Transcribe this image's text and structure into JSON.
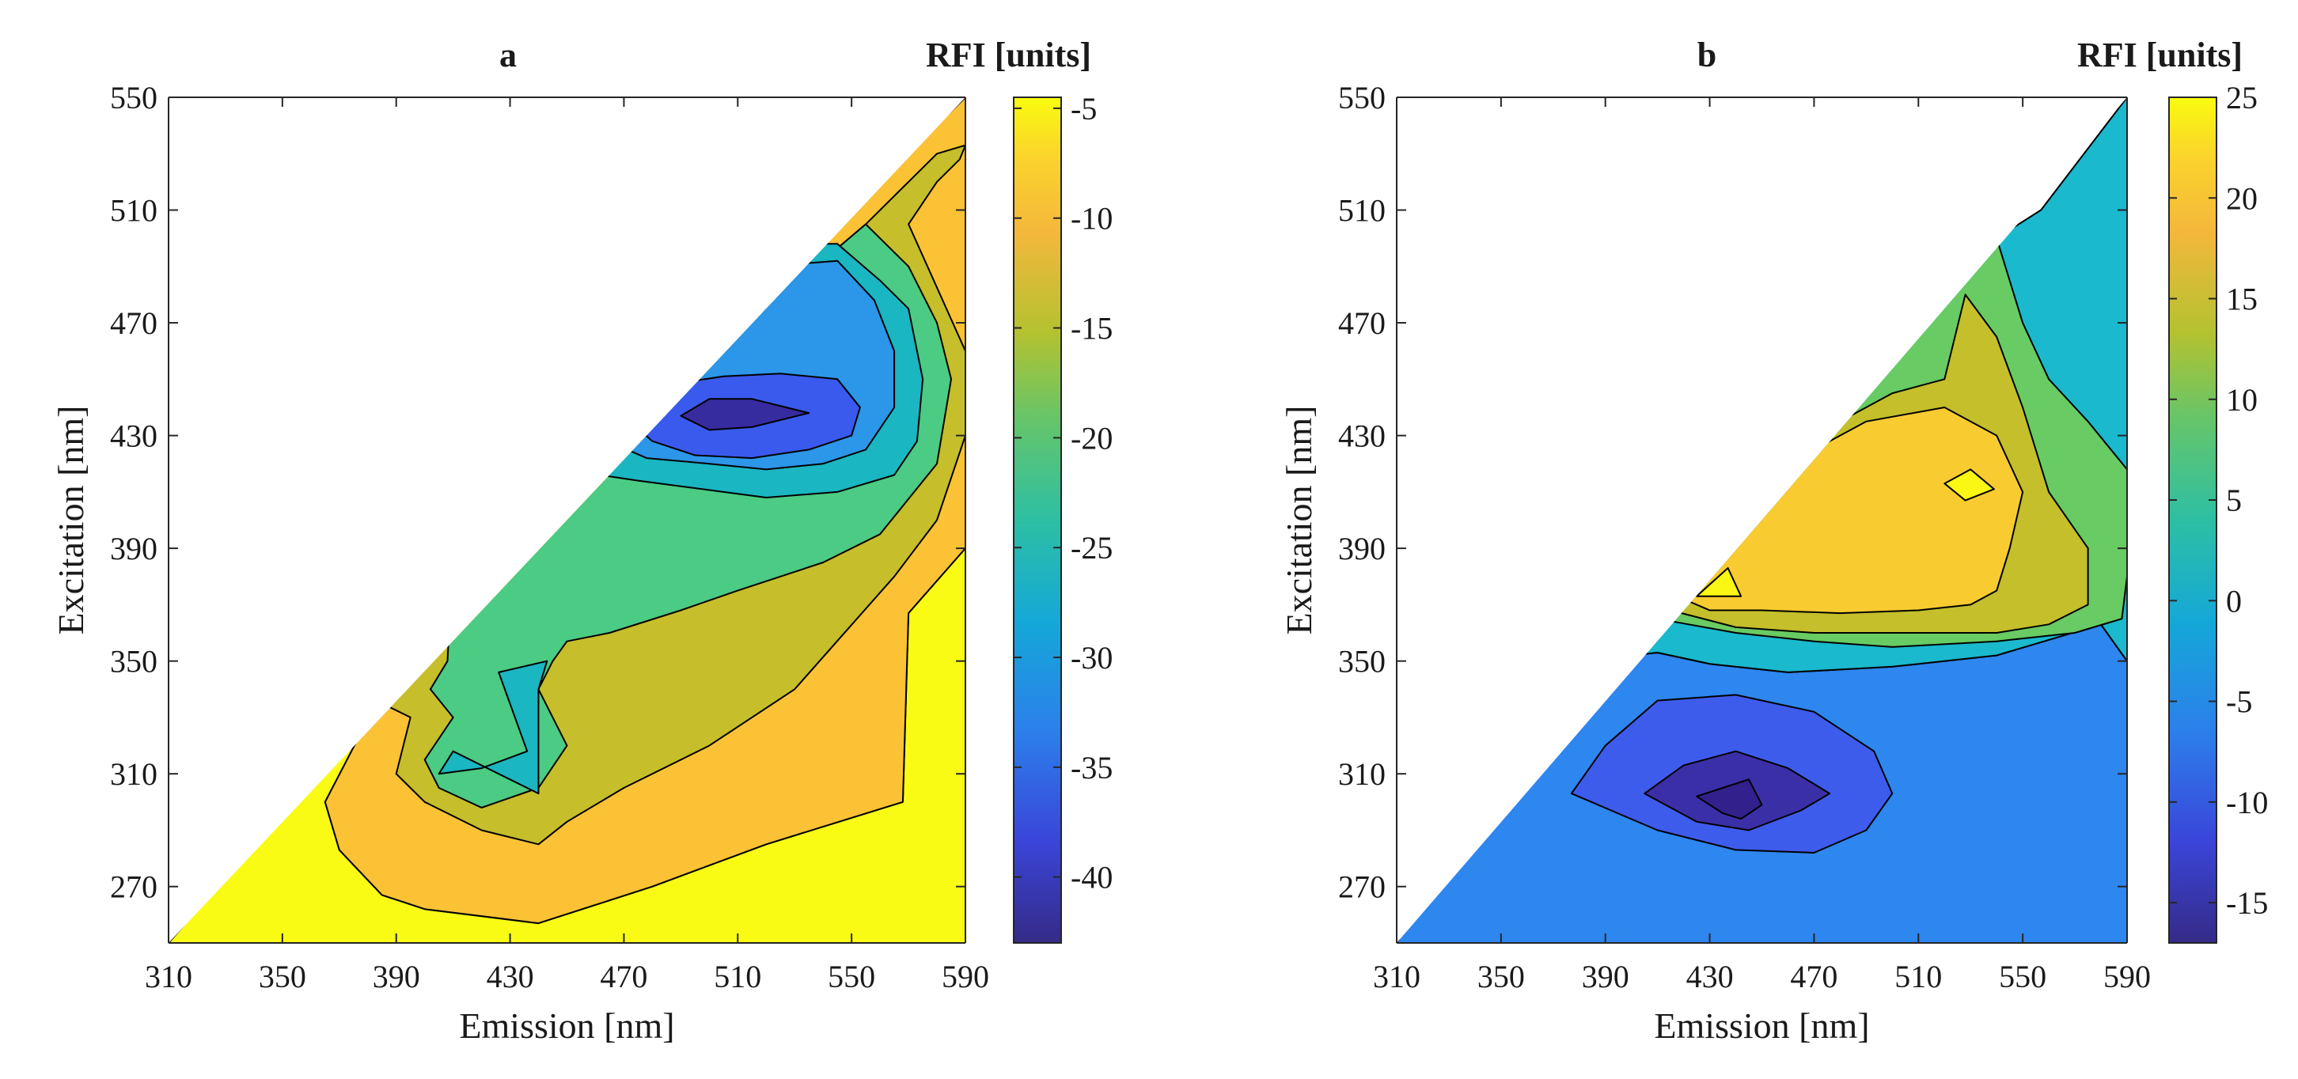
{
  "chart_data": [
    {
      "type": "contour",
      "panel": "a",
      "title": "a",
      "colorbar_label": "RFI [units]",
      "xlabel": "Emission [nm]",
      "ylabel": "Excitation [nm]",
      "xlim": [
        310,
        590
      ],
      "ylim": [
        250,
        550
      ],
      "xticks": [
        "310",
        "350",
        "390",
        "430",
        "470",
        "510",
        "550",
        "590"
      ],
      "yticks": [
        "270",
        "310",
        "350",
        "390",
        "430",
        "470",
        "510",
        "550"
      ],
      "colorbar_range": [
        -43,
        -4.5
      ],
      "colorbar_ticks": [
        "-5",
        "-10",
        "-15",
        "-20",
        "-25",
        "-30",
        "-35",
        "-40"
      ],
      "regions": [
        {
          "level": -4.5,
          "color": "#F9FB15",
          "points": [
            [
              310,
              250
            ],
            [
              590,
              250
            ],
            [
              590,
              390
            ],
            [
              570,
              367
            ],
            [
              568,
              300
            ],
            [
              520,
              285
            ],
            [
              480,
              270
            ],
            [
              440,
              257
            ],
            [
              400,
              262
            ],
            [
              385,
              267
            ],
            [
              370,
              283
            ],
            [
              365,
              300
            ],
            [
              382,
              333
            ]
          ]
        },
        {
          "level": -10,
          "color": "#FBC236",
          "points": [
            [
              382,
              333
            ],
            [
              365,
              300
            ],
            [
              370,
              283
            ],
            [
              385,
              267
            ],
            [
              400,
              262
            ],
            [
              440,
              257
            ],
            [
              480,
              270
            ],
            [
              520,
              285
            ],
            [
              568,
              300
            ],
            [
              570,
              367
            ],
            [
              590,
              390
            ],
            [
              590,
              550
            ],
            [
              485,
              445
            ],
            [
              410,
              390
            ],
            [
              385,
              335
            ]
          ]
        },
        {
          "level": -14,
          "color": "#C6BE2A",
          "points": [
            [
              385,
              335
            ],
            [
              410,
              390
            ],
            [
              485,
              445
            ],
            [
              555,
              505
            ],
            [
              570,
              520
            ],
            [
              580,
              530
            ],
            [
              590,
              533
            ],
            [
              588,
              528
            ],
            [
              580,
              520
            ],
            [
              570,
              505
            ],
            [
              590,
              460
            ],
            [
              590,
              430
            ],
            [
              580,
              400
            ],
            [
              565,
              380
            ],
            [
              530,
              340
            ],
            [
              500,
              320
            ],
            [
              470,
              305
            ],
            [
              450,
              293
            ],
            [
              440,
              285
            ],
            [
              420,
              290
            ],
            [
              400,
              300
            ],
            [
              390,
              310
            ],
            [
              395,
              330
            ]
          ]
        },
        {
          "level": -20,
          "color": "#4BCB84",
          "points": [
            [
              408,
              350
            ],
            [
              410,
              390
            ],
            [
              485,
              445
            ],
            [
              555,
              505
            ],
            [
              570,
              490
            ],
            [
              580,
              470
            ],
            [
              585,
              450
            ],
            [
              580,
              420
            ],
            [
              560,
              395
            ],
            [
              540,
              385
            ],
            [
              510,
              375
            ],
            [
              490,
              368
            ],
            [
              465,
              360
            ],
            [
              450,
              357
            ],
            [
              445,
              350
            ],
            [
              440,
              340
            ],
            [
              445,
              330
            ],
            [
              450,
              320
            ],
            [
              440,
              305
            ],
            [
              420,
              298
            ],
            [
              405,
              305
            ],
            [
              400,
              315
            ],
            [
              410,
              330
            ],
            [
              402,
              340
            ]
          ]
        },
        {
          "level": -26,
          "color": "#1AB6C1",
          "points": [
            [
              426,
              346
            ],
            [
              443,
              350
            ],
            [
              440,
              340
            ],
            [
              440,
              303
            ],
            [
              410,
              318
            ],
            [
              405,
              310
            ],
            [
              420,
              312
            ],
            [
              436,
              318
            ]
          ]
        },
        {
          "level": -26,
          "color": "#1AB6C1",
          "points": [
            [
              435,
              420
            ],
            [
              455,
              440
            ],
            [
              480,
              470
            ],
            [
              500,
              490
            ],
            [
              520,
              498
            ],
            [
              545,
              498
            ],
            [
              560,
              485
            ],
            [
              570,
              475
            ],
            [
              575,
              450
            ],
            [
              573,
              428
            ],
            [
              565,
              416
            ],
            [
              545,
              410
            ],
            [
              520,
              408
            ],
            [
              505,
              410
            ],
            [
              490,
              412
            ],
            [
              475,
              414
            ],
            [
              455,
              417
            ]
          ]
        },
        {
          "level": -31,
          "color": "#2C96E8",
          "points": [
            [
              455,
              432
            ],
            [
              480,
              465
            ],
            [
              500,
              480
            ],
            [
              520,
              490
            ],
            [
              545,
              492
            ],
            [
              558,
              478
            ],
            [
              565,
              460
            ],
            [
              565,
              440
            ],
            [
              555,
              425
            ],
            [
              540,
              420
            ],
            [
              520,
              418
            ],
            [
              500,
              420
            ],
            [
              478,
              422
            ]
          ]
        },
        {
          "level": -37,
          "color": "#3A5AEE",
          "points": [
            [
              470,
              437
            ],
            [
              485,
              448
            ],
            [
              505,
              451
            ],
            [
              525,
              452
            ],
            [
              545,
              450
            ],
            [
              553,
              440
            ],
            [
              550,
              430
            ],
            [
              535,
              425
            ],
            [
              515,
              422
            ],
            [
              495,
              423
            ],
            [
              480,
              428
            ]
          ]
        },
        {
          "level": -42,
          "color": "#362B9F",
          "points": [
            [
              490,
              437
            ],
            [
              500,
              443
            ],
            [
              515,
              443
            ],
            [
              535,
              438
            ],
            [
              515,
              433
            ],
            [
              500,
              432
            ]
          ]
        }
      ]
    },
    {
      "type": "contour",
      "panel": "b",
      "title": "b",
      "colorbar_label": "RFI [units]",
      "xlabel": "Emission [nm]",
      "ylabel": "Excitation [nm]",
      "xlim": [
        310,
        590
      ],
      "ylim": [
        250,
        550
      ],
      "xticks": [
        "310",
        "350",
        "390",
        "430",
        "470",
        "510",
        "550",
        "590"
      ],
      "yticks": [
        "270",
        "310",
        "350",
        "390",
        "430",
        "470",
        "510",
        "550"
      ],
      "colorbar_range": [
        -17,
        25
      ],
      "colorbar_ticks": [
        "25",
        "20",
        "15",
        "10",
        "5",
        "0",
        "-5",
        "-10",
        "-15"
      ],
      "regions": [
        {
          "level": -4,
          "color": "#2E86EF",
          "points": [
            [
              310,
              250
            ],
            [
              590,
              250
            ],
            [
              590,
              350
            ],
            [
              580,
              363
            ],
            [
              540,
              352
            ],
            [
              500,
              348
            ],
            [
              460,
              346
            ],
            [
              430,
              349
            ],
            [
              410,
              353
            ],
            [
              400,
              352
            ],
            [
              380,
              352
            ],
            [
              375,
              345
            ]
          ]
        },
        {
          "level": 2,
          "color": "#1AB9CD",
          "points": [
            [
              375,
              345
            ],
            [
              380,
              352
            ],
            [
              400,
              352
            ],
            [
              410,
              353
            ],
            [
              430,
              349
            ],
            [
              460,
              346
            ],
            [
              500,
              348
            ],
            [
              540,
              352
            ],
            [
              580,
              363
            ],
            [
              590,
              350
            ],
            [
              590,
              550
            ],
            [
              557,
              510
            ],
            [
              540,
              500
            ],
            [
              520,
              480
            ],
            [
              480,
              440
            ],
            [
              445,
              427
            ],
            [
              400,
              395
            ]
          ]
        },
        {
          "level": 8,
          "color": "#68CB63",
          "points": [
            [
              400,
              395
            ],
            [
              445,
              427
            ],
            [
              480,
              440
            ],
            [
              520,
              480
            ],
            [
              540,
              500
            ],
            [
              550,
              470
            ],
            [
              560,
              450
            ],
            [
              575,
              435
            ],
            [
              590,
              418
            ],
            [
              590,
              380
            ],
            [
              588,
              365
            ],
            [
              570,
              360
            ],
            [
              540,
              357
            ],
            [
              500,
              355
            ],
            [
              470,
              357
            ],
            [
              440,
              360
            ],
            [
              410,
              365
            ],
            [
              395,
              372
            ]
          ]
        },
        {
          "level": 14,
          "color": "#C4BF2A",
          "points": [
            [
              408,
              380
            ],
            [
              420,
              400
            ],
            [
              445,
              415
            ],
            [
              470,
              430
            ],
            [
              500,
              445
            ],
            [
              520,
              450
            ],
            [
              528,
              480
            ],
            [
              540,
              465
            ],
            [
              550,
              440
            ],
            [
              560,
              410
            ],
            [
              575,
              390
            ],
            [
              575,
              370
            ],
            [
              560,
              363
            ],
            [
              540,
              360
            ],
            [
              500,
              360
            ],
            [
              470,
              360
            ],
            [
              440,
              362
            ],
            [
              415,
              368
            ]
          ]
        },
        {
          "level": 19,
          "color": "#F8CB30",
          "points": [
            [
              415,
              378
            ],
            [
              430,
              398
            ],
            [
              460,
              420
            ],
            [
              490,
              435
            ],
            [
              520,
              440
            ],
            [
              540,
              430
            ],
            [
              550,
              410
            ],
            [
              545,
              390
            ],
            [
              540,
              375
            ],
            [
              530,
              370
            ],
            [
              510,
              368
            ],
            [
              480,
              367
            ],
            [
              450,
              368
            ],
            [
              430,
              368
            ],
            [
              420,
              372
            ]
          ]
        },
        {
          "level": 24,
          "color": "#F9F713",
          "points": [
            [
              425,
              373
            ],
            [
              437,
              383
            ],
            [
              442,
              373
            ]
          ]
        },
        {
          "level": 24,
          "color": "#F9F713",
          "points": [
            [
              520,
              413
            ],
            [
              530,
              418
            ],
            [
              539,
              411
            ],
            [
              528,
              407
            ]
          ]
        },
        {
          "level": -9,
          "color": "#3E5CEC",
          "points": [
            [
              377,
              303
            ],
            [
              410,
              290
            ],
            [
              440,
              283
            ],
            [
              470,
              282
            ],
            [
              490,
              290
            ],
            [
              500,
              303
            ],
            [
              493,
              318
            ],
            [
              470,
              332
            ],
            [
              440,
              338
            ],
            [
              410,
              336
            ],
            [
              390,
              320
            ]
          ]
        },
        {
          "level": -14,
          "color": "#3A2FA6",
          "points": [
            [
              405,
              303
            ],
            [
              425,
              293
            ],
            [
              445,
              290
            ],
            [
              465,
              297
            ],
            [
              476,
              303
            ],
            [
              460,
              312
            ],
            [
              440,
              318
            ],
            [
              420,
              313
            ]
          ]
        },
        {
          "level": -17,
          "color": "#32208C",
          "points": [
            [
              425,
              302
            ],
            [
              435,
              296
            ],
            [
              442,
              294
            ],
            [
              450,
              299
            ],
            [
              445,
              308
            ],
            [
              435,
              305
            ]
          ]
        }
      ]
    }
  ]
}
